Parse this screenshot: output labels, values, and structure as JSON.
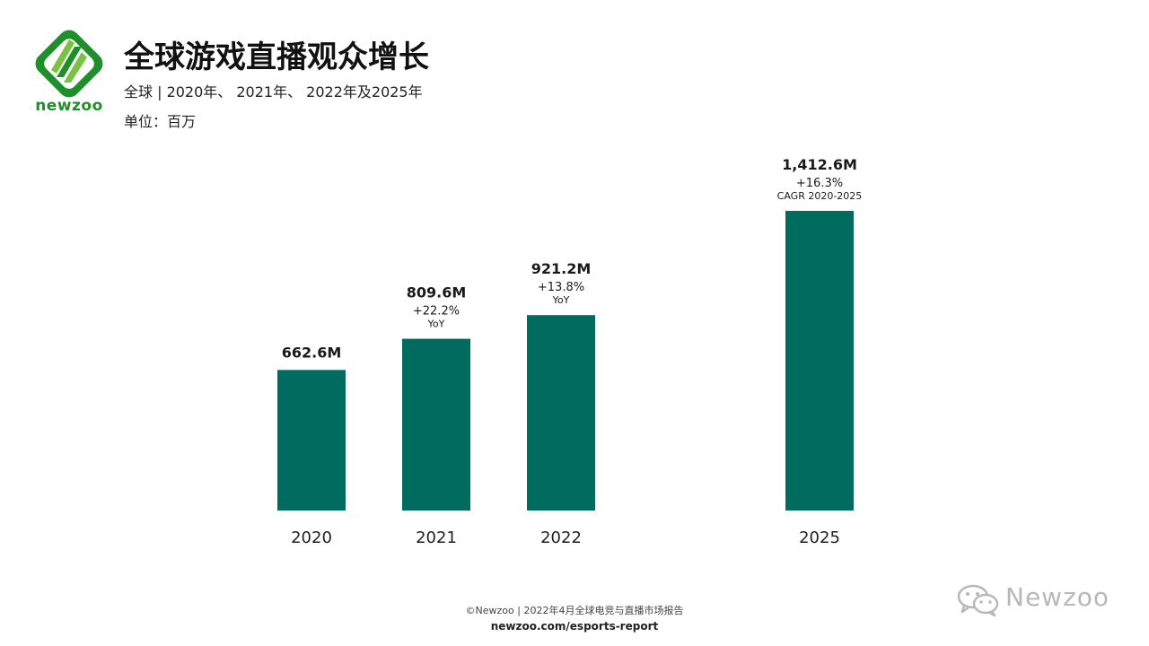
{
  "header": {
    "logo_text": "newzoo",
    "title": "全球游戏直播观众增长",
    "subtitle": "全球 | 2020年、 2021年、 2022年及2025年",
    "unit": "单位：百万"
  },
  "colors": {
    "bar": "#006b5f",
    "brand_green": "#1f8f2c",
    "brand_light_green": "#7cc242"
  },
  "chart_data": {
    "type": "bar",
    "title": "全球游戏直播观众增长",
    "categories": [
      "2020",
      "2021",
      "2022",
      "2025"
    ],
    "values": [
      662.6,
      809.6,
      921.2,
      1412.6
    ],
    "value_labels": [
      "662.6M",
      "809.6M",
      "921.2M",
      "1,412.6M"
    ],
    "growth_labels": [
      "",
      "+22.2%",
      "+13.8%",
      "+16.3%"
    ],
    "growth_notes": [
      "",
      "YoY",
      "YoY",
      "CAGR 2020-2025"
    ],
    "xlabel": "",
    "ylabel": "",
    "ylim": [
      0,
      1412.6
    ],
    "grid": false,
    "legend": "none"
  },
  "footer": {
    "copyright": "©Newzoo | 2022年4月全球电竞与直播市场报告",
    "url": "newzoo.com/esports-report"
  },
  "watermark": {
    "text": "Newzoo",
    "icon": "wechat-icon"
  }
}
